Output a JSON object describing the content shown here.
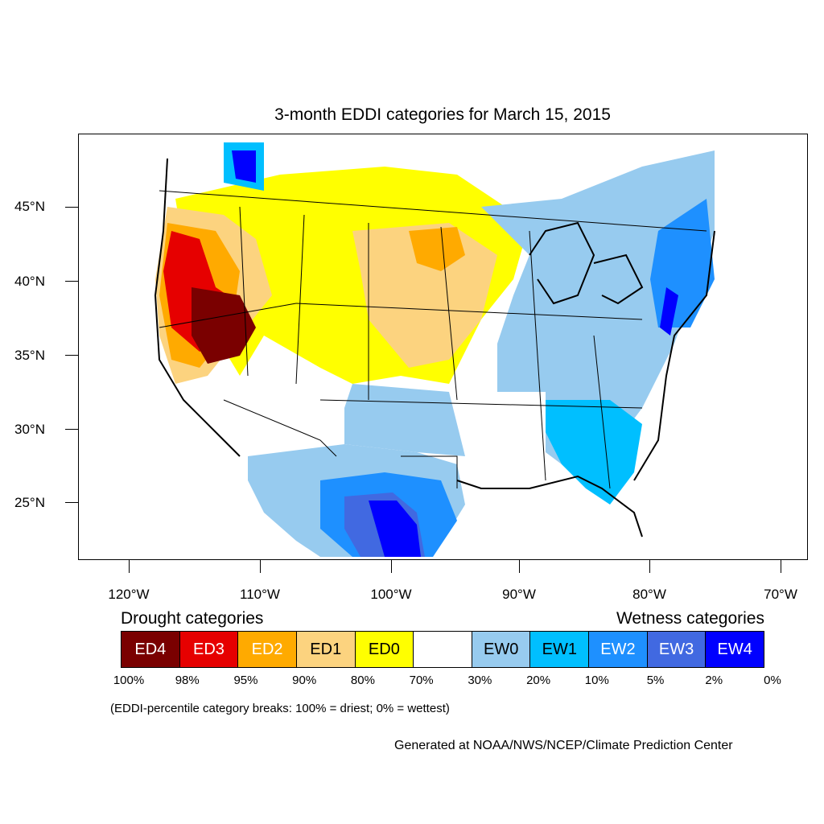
{
  "title": "3-month EDDI categories for March 15, 2015",
  "lat_labels": [
    "45°N",
    "40°N",
    "35°N",
    "30°N",
    "25°N"
  ],
  "lon_labels": [
    "120°W",
    "110°W",
    "100°W",
    "90°W",
    "80°W",
    "70°W"
  ],
  "legend": {
    "drought_heading": "Drought categories",
    "wetness_heading": "Wetness categories",
    "categories": [
      {
        "label": "ED4",
        "color": "#7a0000",
        "text_color": "#ffffff"
      },
      {
        "label": "ED3",
        "color": "#e60000",
        "text_color": "#ffffff"
      },
      {
        "label": "ED2",
        "color": "#ffaa00",
        "text_color": "#ffffff"
      },
      {
        "label": "ED1",
        "color": "#fcd37f",
        "text_color": "#000000"
      },
      {
        "label": "ED0",
        "color": "#ffff00",
        "text_color": "#000000"
      },
      {
        "label": "",
        "color": "#ffffff",
        "text_color": "#000000"
      },
      {
        "label": "EW0",
        "color": "#97cbef",
        "text_color": "#000000"
      },
      {
        "label": "EW1",
        "color": "#00bfff",
        "text_color": "#000000"
      },
      {
        "label": "EW2",
        "color": "#1e90ff",
        "text_color": "#ffffff"
      },
      {
        "label": "EW3",
        "color": "#4169e1",
        "text_color": "#ffffff"
      },
      {
        "label": "EW4",
        "color": "#0000ff",
        "text_color": "#ffffff"
      }
    ],
    "percentiles": [
      "100%",
      "98%",
      "95%",
      "90%",
      "80%",
      "70%",
      "30%",
      "20%",
      "10%",
      "5%",
      "2%",
      "0%"
    ]
  },
  "note": "(EDDI-percentile category breaks: 100% = driest; 0% = wettest)",
  "credit": "Generated at NOAA/NWS/NCEP/Climate Prediction Center"
}
